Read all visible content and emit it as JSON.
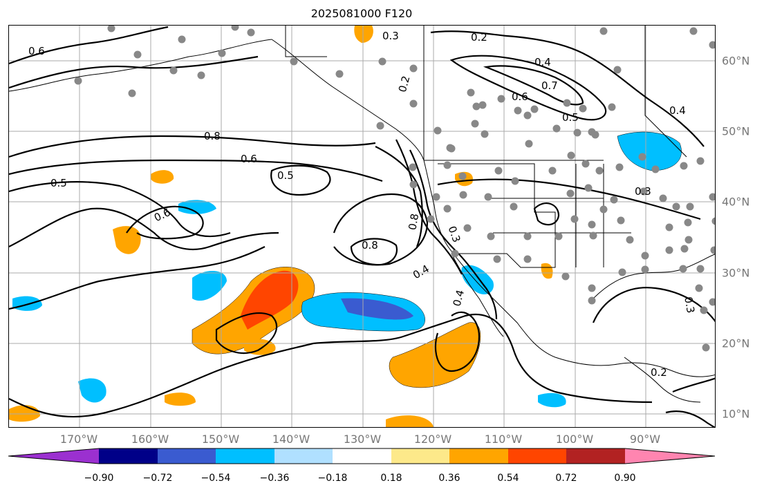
{
  "title": "2025081000 F120",
  "lon_labels": [
    "170°W",
    "160°W",
    "150°W",
    "140°W",
    "130°W",
    "120°W",
    "110°W",
    "100°W",
    "90°W"
  ],
  "lat_labels": [
    "60°N",
    "50°N",
    "40°N",
    "30°N",
    "20°N",
    "10°N"
  ],
  "colorbar": {
    "ticks": [
      "−0.90",
      "−0.72",
      "−0.54",
      "−0.36",
      "−0.18",
      "0.18",
      "0.36",
      "0.54",
      "0.72",
      "0.90"
    ],
    "colors": [
      "#9b30d0",
      "#000088",
      "#3a5bd0",
      "#00bfff",
      "#b0e0ff",
      "#ffffff",
      "#fde98a",
      "#ffa500",
      "#ff4500",
      "#b22222",
      "#ff85b0"
    ]
  },
  "contour_labels": [
    "0.6",
    "0.3",
    "0.2",
    "0.2",
    "0.4",
    "0.7",
    "0.6",
    "0.5",
    "0.4",
    "0.8",
    "0.6",
    "0.5",
    "0.5",
    "0.6",
    "0.8",
    "0.8",
    "0.3",
    "0.4",
    "0.4",
    "0.3",
    "0.3",
    "0.2"
  ],
  "colors": {
    "contour": "#000000",
    "station": "#888888",
    "grid": "#aaaaaa"
  }
}
